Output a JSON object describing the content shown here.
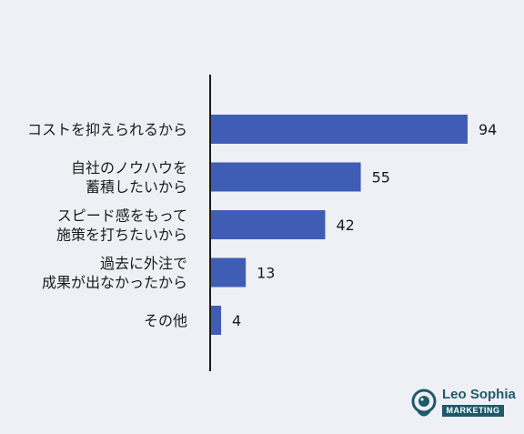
{
  "chart_data": {
    "type": "bar",
    "orientation": "horizontal",
    "categories": [
      [
        "コストを抑えられるから"
      ],
      [
        "自社のノウハウを",
        "蓄積したいから"
      ],
      [
        "スピード感をもって",
        "施策を打ちたいから"
      ],
      [
        "過去に外注で",
        "成果が出なかったから"
      ],
      [
        "その他"
      ]
    ],
    "values": [
      94,
      55,
      42,
      13,
      4
    ],
    "xlim": [
      0,
      100
    ],
    "grid": false,
    "bar_color": "#3f5db5",
    "axis_color": "#1a1a1a"
  },
  "logo": {
    "name": "Leo Sophia",
    "badge": "MARKETING",
    "color": "#1f5a6b",
    "icon": "lion-head-icon"
  }
}
